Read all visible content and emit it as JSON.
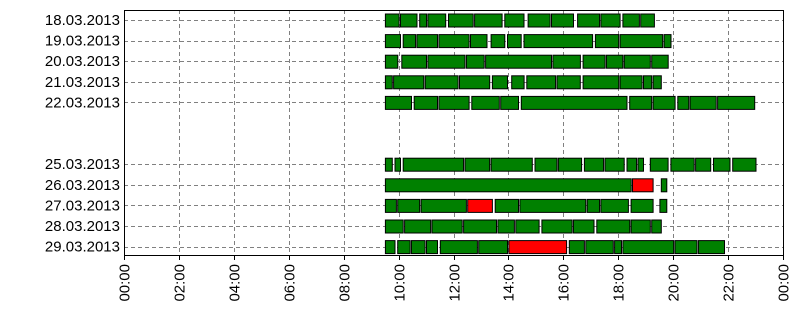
{
  "chart_data": {
    "type": "timeline",
    "title": "",
    "xlabel": "",
    "ylabel": "",
    "x_unit": "hours",
    "xlim": [
      0,
      24
    ],
    "x_ticks": [
      "00:00",
      "02:00",
      "04:00",
      "06:00",
      "08:00",
      "10:00",
      "12:00",
      "14:00",
      "16:00",
      "18:00",
      "20:00",
      "22:00",
      "00:00"
    ],
    "grid": true,
    "colors": {
      "normal": "#008000",
      "alert": "#ff0000",
      "outline": "#000000"
    },
    "rows": [
      {
        "date": "18.03.2013",
        "segments": [
          {
            "start": 9.5,
            "end": 10.0,
            "status": "normal"
          },
          {
            "start": 10.05,
            "end": 10.65,
            "status": "normal"
          },
          {
            "start": 10.75,
            "end": 11.0,
            "status": "normal"
          },
          {
            "start": 11.05,
            "end": 11.7,
            "status": "normal"
          },
          {
            "start": 11.8,
            "end": 12.7,
            "status": "normal"
          },
          {
            "start": 12.75,
            "end": 13.75,
            "status": "normal"
          },
          {
            "start": 13.85,
            "end": 14.55,
            "status": "normal"
          },
          {
            "start": 14.7,
            "end": 15.5,
            "status": "normal"
          },
          {
            "start": 15.55,
            "end": 16.35,
            "status": "normal"
          },
          {
            "start": 16.5,
            "end": 17.3,
            "status": "normal"
          },
          {
            "start": 17.35,
            "end": 18.05,
            "status": "normal"
          },
          {
            "start": 18.15,
            "end": 18.75,
            "status": "normal"
          },
          {
            "start": 18.8,
            "end": 19.3,
            "status": "normal"
          }
        ]
      },
      {
        "date": "19.03.2013",
        "segments": [
          {
            "start": 9.5,
            "end": 10.05,
            "status": "normal"
          },
          {
            "start": 10.15,
            "end": 10.6,
            "status": "normal"
          },
          {
            "start": 10.65,
            "end": 11.4,
            "status": "normal"
          },
          {
            "start": 11.45,
            "end": 12.55,
            "status": "normal"
          },
          {
            "start": 12.6,
            "end": 13.2,
            "status": "normal"
          },
          {
            "start": 13.35,
            "end": 13.85,
            "status": "normal"
          },
          {
            "start": 13.95,
            "end": 14.45,
            "status": "normal"
          },
          {
            "start": 14.55,
            "end": 17.05,
            "status": "normal"
          },
          {
            "start": 17.15,
            "end": 18.0,
            "status": "normal"
          },
          {
            "start": 18.05,
            "end": 19.6,
            "status": "normal"
          },
          {
            "start": 19.65,
            "end": 19.9,
            "status": "normal"
          }
        ]
      },
      {
        "date": "20.03.2013",
        "segments": [
          {
            "start": 9.5,
            "end": 9.95,
            "status": "normal"
          },
          {
            "start": 10.1,
            "end": 11.0,
            "status": "normal"
          },
          {
            "start": 11.05,
            "end": 12.4,
            "status": "normal"
          },
          {
            "start": 12.45,
            "end": 13.1,
            "status": "normal"
          },
          {
            "start": 13.15,
            "end": 15.55,
            "status": "normal"
          },
          {
            "start": 15.6,
            "end": 16.6,
            "status": "normal"
          },
          {
            "start": 16.7,
            "end": 17.5,
            "status": "normal"
          },
          {
            "start": 17.55,
            "end": 18.15,
            "status": "normal"
          },
          {
            "start": 18.2,
            "end": 19.15,
            "status": "normal"
          },
          {
            "start": 19.2,
            "end": 19.8,
            "status": "normal"
          }
        ]
      },
      {
        "date": "21.03.2013",
        "segments": [
          {
            "start": 9.5,
            "end": 9.75,
            "status": "normal"
          },
          {
            "start": 9.8,
            "end": 10.9,
            "status": "normal"
          },
          {
            "start": 10.95,
            "end": 12.15,
            "status": "normal"
          },
          {
            "start": 12.2,
            "end": 13.3,
            "status": "normal"
          },
          {
            "start": 13.4,
            "end": 13.95,
            "status": "normal"
          },
          {
            "start": 14.1,
            "end": 14.55,
            "status": "normal"
          },
          {
            "start": 14.65,
            "end": 15.7,
            "status": "normal"
          },
          {
            "start": 15.75,
            "end": 16.6,
            "status": "normal"
          },
          {
            "start": 16.7,
            "end": 18.0,
            "status": "normal"
          },
          {
            "start": 18.05,
            "end": 18.85,
            "status": "normal"
          },
          {
            "start": 18.9,
            "end": 19.2,
            "status": "normal"
          },
          {
            "start": 19.25,
            "end": 19.55,
            "status": "normal"
          }
        ]
      },
      {
        "date": "22.03.2013",
        "segments": [
          {
            "start": 9.5,
            "end": 10.45,
            "status": "normal"
          },
          {
            "start": 10.55,
            "end": 11.4,
            "status": "normal"
          },
          {
            "start": 11.45,
            "end": 12.55,
            "status": "normal"
          },
          {
            "start": 12.65,
            "end": 13.65,
            "status": "normal"
          },
          {
            "start": 13.7,
            "end": 14.35,
            "status": "normal"
          },
          {
            "start": 14.45,
            "end": 18.3,
            "status": "normal"
          },
          {
            "start": 18.4,
            "end": 19.2,
            "status": "normal"
          },
          {
            "start": 19.25,
            "end": 20.05,
            "status": "normal"
          },
          {
            "start": 20.15,
            "end": 20.55,
            "status": "normal"
          },
          {
            "start": 20.6,
            "end": 21.55,
            "status": "normal"
          },
          {
            "start": 21.6,
            "end": 22.95,
            "status": "normal"
          }
        ]
      },
      {
        "date": "",
        "segments": []
      },
      {
        "date": "",
        "segments": []
      },
      {
        "date": "25.03.2013",
        "segments": [
          {
            "start": 9.5,
            "end": 9.75,
            "status": "normal"
          },
          {
            "start": 9.85,
            "end": 10.05,
            "status": "normal"
          },
          {
            "start": 10.15,
            "end": 12.35,
            "status": "normal"
          },
          {
            "start": 12.4,
            "end": 13.3,
            "status": "normal"
          },
          {
            "start": 13.35,
            "end": 14.85,
            "status": "normal"
          },
          {
            "start": 14.95,
            "end": 15.75,
            "status": "normal"
          },
          {
            "start": 15.8,
            "end": 16.65,
            "status": "normal"
          },
          {
            "start": 16.75,
            "end": 17.45,
            "status": "normal"
          },
          {
            "start": 17.5,
            "end": 18.2,
            "status": "normal"
          },
          {
            "start": 18.3,
            "end": 18.65,
            "status": "normal"
          },
          {
            "start": 18.7,
            "end": 18.9,
            "status": "normal"
          },
          {
            "start": 19.15,
            "end": 19.8,
            "status": "normal"
          },
          {
            "start": 19.9,
            "end": 20.75,
            "status": "normal"
          },
          {
            "start": 20.8,
            "end": 21.35,
            "status": "normal"
          },
          {
            "start": 21.45,
            "end": 22.05,
            "status": "normal"
          },
          {
            "start": 22.15,
            "end": 23.0,
            "status": "normal"
          }
        ]
      },
      {
        "date": "26.03.2013",
        "segments": [
          {
            "start": 9.5,
            "end": 18.45,
            "status": "normal"
          },
          {
            "start": 18.5,
            "end": 19.25,
            "status": "alert"
          },
          {
            "start": 19.55,
            "end": 19.75,
            "status": "normal"
          }
        ]
      },
      {
        "date": "27.03.2013",
        "segments": [
          {
            "start": 9.5,
            "end": 9.9,
            "status": "normal"
          },
          {
            "start": 9.95,
            "end": 10.75,
            "status": "normal"
          },
          {
            "start": 10.8,
            "end": 12.45,
            "status": "normal"
          },
          {
            "start": 12.5,
            "end": 13.4,
            "status": "alert"
          },
          {
            "start": 13.5,
            "end": 14.35,
            "status": "normal"
          },
          {
            "start": 14.4,
            "end": 16.8,
            "status": "normal"
          },
          {
            "start": 16.85,
            "end": 17.3,
            "status": "normal"
          },
          {
            "start": 17.35,
            "end": 18.35,
            "status": "normal"
          },
          {
            "start": 18.45,
            "end": 19.25,
            "status": "normal"
          },
          {
            "start": 19.5,
            "end": 19.75,
            "status": "normal"
          }
        ]
      },
      {
        "date": "28.03.2013",
        "segments": [
          {
            "start": 9.5,
            "end": 10.15,
            "status": "normal"
          },
          {
            "start": 10.2,
            "end": 11.15,
            "status": "normal"
          },
          {
            "start": 11.2,
            "end": 12.3,
            "status": "normal"
          },
          {
            "start": 12.35,
            "end": 13.55,
            "status": "normal"
          },
          {
            "start": 13.6,
            "end": 14.2,
            "status": "normal"
          },
          {
            "start": 14.25,
            "end": 15.1,
            "status": "normal"
          },
          {
            "start": 15.2,
            "end": 16.3,
            "status": "normal"
          },
          {
            "start": 16.35,
            "end": 17.1,
            "status": "normal"
          },
          {
            "start": 17.2,
            "end": 18.4,
            "status": "normal"
          },
          {
            "start": 18.45,
            "end": 19.15,
            "status": "normal"
          },
          {
            "start": 19.2,
            "end": 19.55,
            "status": "normal"
          }
        ]
      },
      {
        "date": "29.03.2013",
        "segments": [
          {
            "start": 9.5,
            "end": 9.85,
            "status": "normal"
          },
          {
            "start": 9.95,
            "end": 10.4,
            "status": "normal"
          },
          {
            "start": 10.45,
            "end": 10.95,
            "status": "normal"
          },
          {
            "start": 11.0,
            "end": 11.4,
            "status": "normal"
          },
          {
            "start": 11.5,
            "end": 12.85,
            "status": "normal"
          },
          {
            "start": 12.9,
            "end": 13.95,
            "status": "normal"
          },
          {
            "start": 14.0,
            "end": 16.1,
            "status": "alert"
          },
          {
            "start": 16.2,
            "end": 16.75,
            "status": "normal"
          },
          {
            "start": 16.8,
            "end": 17.8,
            "status": "normal"
          },
          {
            "start": 17.85,
            "end": 18.1,
            "status": "normal"
          },
          {
            "start": 18.15,
            "end": 20.0,
            "status": "normal"
          },
          {
            "start": 20.05,
            "end": 20.85,
            "status": "normal"
          },
          {
            "start": 20.9,
            "end": 21.85,
            "status": "normal"
          }
        ]
      }
    ]
  }
}
